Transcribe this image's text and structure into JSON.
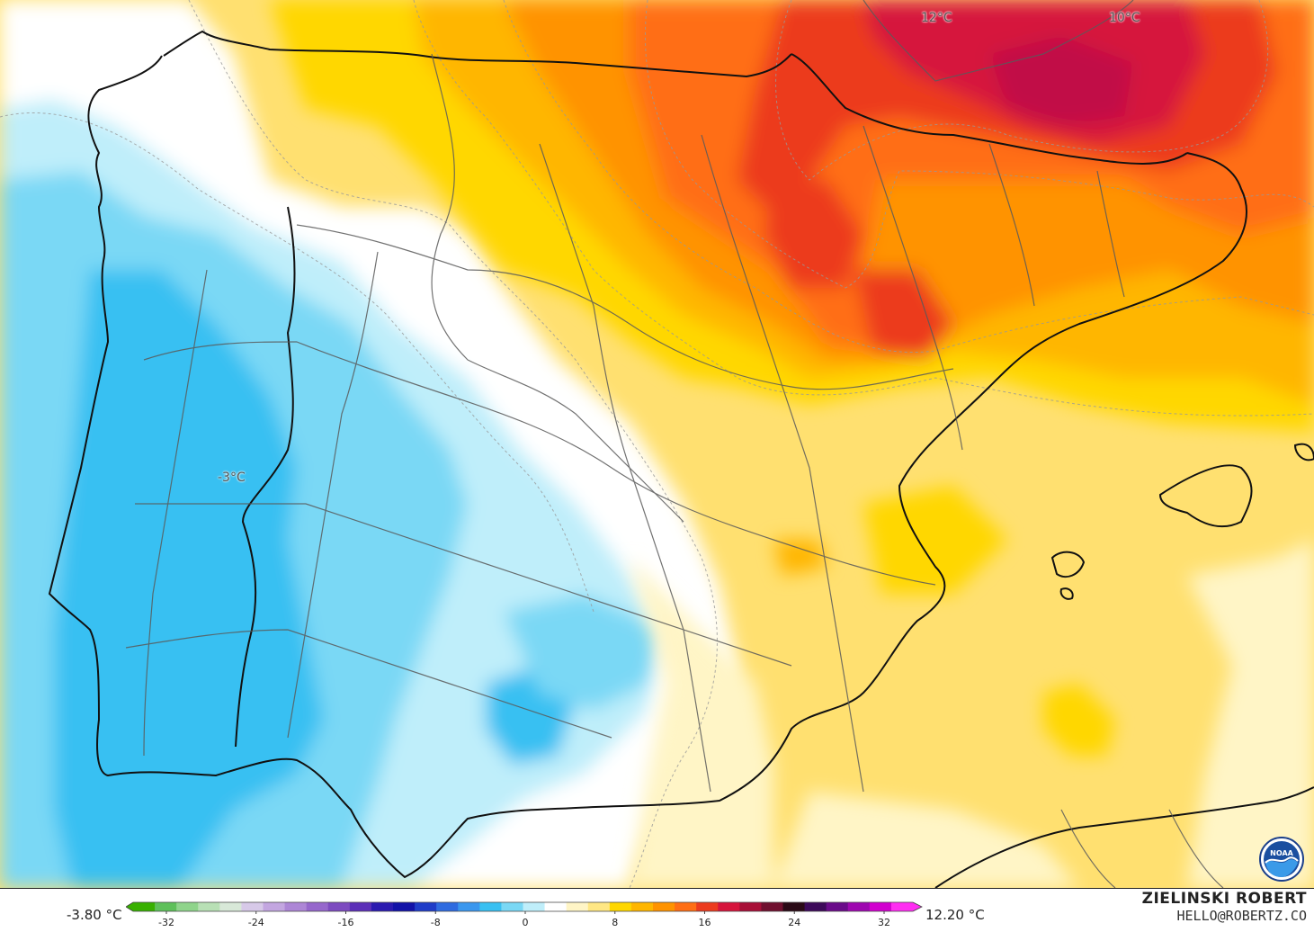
{
  "map": {
    "labels": {
      "temp_12": "12°C",
      "temp_10": "10°C",
      "temp_minus3": "-3°C"
    }
  },
  "legend": {
    "min_value": "-3.80 °C",
    "max_value": "12.20 °C",
    "ticks": [
      "-32",
      "-24",
      "-16",
      "-8",
      "0",
      "8",
      "16",
      "24",
      "32"
    ],
    "colors": [
      "#38b000",
      "#5ec05a",
      "#8fd48b",
      "#b8e0b5",
      "#d8e8d8",
      "#d7c9e8",
      "#c3a6e0",
      "#ad86d6",
      "#9667cc",
      "#7d4bc0",
      "#5b2fb8",
      "#2b1ab0",
      "#1212a8",
      "#1f3cc8",
      "#2f6be0",
      "#3a97ee",
      "#39c0f2",
      "#7ad8f5",
      "#bfeefa",
      "#ffffff",
      "#fff5c6",
      "#ffe784",
      "#ffd700",
      "#ffb600",
      "#ff9300",
      "#ff6e14",
      "#ec3b1e",
      "#d6143c",
      "#a80f37",
      "#70102f",
      "#2a0a16",
      "#3d0a5a",
      "#6a0b8a",
      "#9e07b0",
      "#d100cf",
      "#ff2ef2"
    ]
  },
  "credit": {
    "name": "ZIELINSKI ROBERT",
    "email": "HELLO@ROBERTZ.CO"
  },
  "logo": {
    "icon": "noaa-logo",
    "text": "NOAA"
  }
}
